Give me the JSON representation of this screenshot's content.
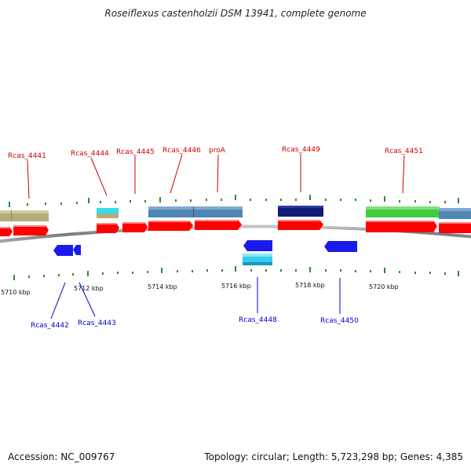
{
  "title": "Roseiflexus castenholzii DSM 13941, complete genome",
  "footer": {
    "accession": "Accession: NC_009767",
    "summary": "Topology: circular; Length: 5,723,298 bp; Genes: 4,385"
  },
  "colors": {
    "label_top": "#cc0000",
    "label_bottom": "#0000cc",
    "tick": "#2e8b2e",
    "backbone": "#8a8a8a",
    "cds_forward": "#ff0000",
    "cds_reverse": "#1a1aee",
    "tan": "#b3ad79",
    "cyan": "#33ddee",
    "steelblue": "#4f86b3",
    "navy": "#101a7a",
    "green": "#40cc40"
  },
  "axis": {
    "unit": "kbp",
    "labeled_ticks": [
      "5710 kbp",
      "5712 kbp",
      "5714 kbp",
      "5716 kbp",
      "5718 kbp",
      "5720 kbp"
    ]
  },
  "genes_top": [
    "Rcas_4441",
    "Rcas_4444",
    "Rcas_4445",
    "Rcas_4446",
    "proA",
    "Rcas_4449",
    "Rcas_4451"
  ],
  "genes_bottom": [
    "Rcas_4442",
    "Rcas_4443",
    "Rcas_4448",
    "Rcas_4450"
  ]
}
